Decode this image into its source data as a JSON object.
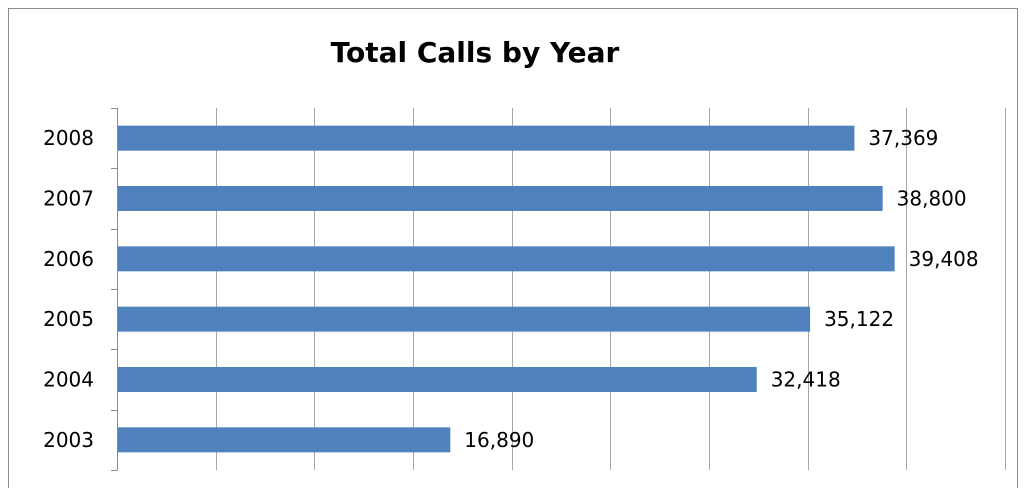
{
  "chart_data": {
    "type": "bar",
    "orientation": "horizontal",
    "title": "Total Calls by Year",
    "categories": [
      "2008",
      "2007",
      "2006",
      "2005",
      "2004",
      "2003"
    ],
    "values": [
      37369,
      38800,
      39408,
      35122,
      32418,
      16890
    ],
    "value_labels": [
      "37,369",
      "38,800",
      "39,408",
      "35,122",
      "32,418",
      "16,890"
    ],
    "xlim": [
      0,
      45000
    ],
    "x_gridline_step": 5000,
    "x_tick_labels_shown": false,
    "grid": true,
    "legend": "none",
    "bar_color": "#4f81bd",
    "gridline_color": "#a6a6a6"
  }
}
